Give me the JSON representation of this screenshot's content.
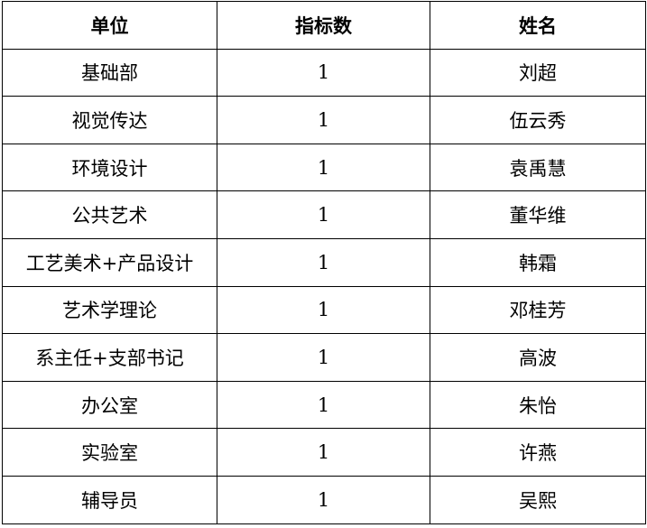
{
  "headers": [
    "单位",
    "指标数",
    "姓名"
  ],
  "rows": [
    [
      "基础部",
      "1",
      "刘超"
    ],
    [
      "视觉传达",
      "1",
      "伍云秀"
    ],
    [
      "环境设计",
      "1",
      "袁禹慧"
    ],
    [
      "公共艺术",
      "1",
      "董华维"
    ],
    [
      "工艺美术+产品设计",
      "1",
      "韩霜"
    ],
    [
      "艺术学理论",
      "1",
      "邓桂芳"
    ],
    [
      "系主任+支部书记",
      "1",
      "高波"
    ],
    [
      "办公室",
      "1",
      "朱怡"
    ],
    [
      "实验室",
      "1",
      "许燕"
    ],
    [
      "辅导员",
      "1",
      "吴熙"
    ]
  ]
}
